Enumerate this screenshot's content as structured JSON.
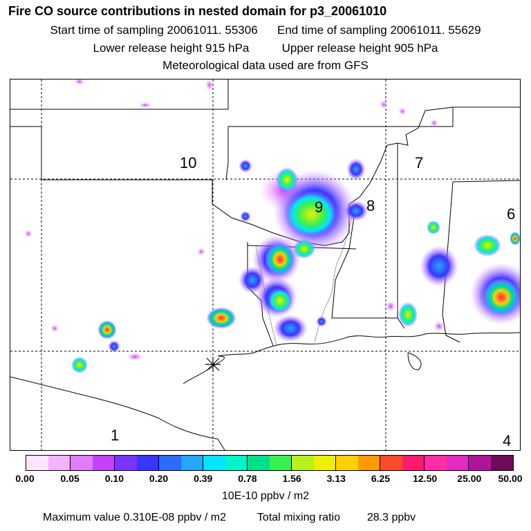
{
  "header": {
    "title": "Fire CO source contributions in nested domain for p3_20061010",
    "start_label": "Start time of sampling 20061011. 55306",
    "end_label": "End time of sampling 20061011. 55629",
    "lower_label": "Lower release height  915 hPa",
    "upper_label": "Upper release height  905 hPa",
    "met_label": "Meteorological data used are from GFS"
  },
  "map": {
    "region_labels": [
      "10",
      "7",
      "9",
      "8",
      "6",
      "1",
      "4"
    ]
  },
  "colorbar": {
    "ticks": [
      "0.00",
      "0.05",
      "0.10",
      "0.20",
      "0.39",
      "0.78",
      "1.56",
      "3.13",
      "6.25",
      "12.50",
      "25.00",
      "50.00"
    ],
    "colors": [
      "#ffe6ff",
      "#f5b3ff",
      "#e27cff",
      "#c640ff",
      "#7a33ff",
      "#3a35ff",
      "#2c6bff",
      "#25a6ff",
      "#00e4ff",
      "#00f5c8",
      "#00e08a",
      "#39f051",
      "#b8ef1e",
      "#eef000",
      "#ffd000",
      "#ff9a00",
      "#ff4a2a",
      "#ff1a6e",
      "#ff2ea6",
      "#e62cc0",
      "#b0149a",
      "#6e0a5a"
    ],
    "units": "10E-10 ppbv / m2"
  },
  "footer": {
    "max_label": "Maximum value  0.310E-08 ppbv / m2",
    "total_label": "Total mixing ratio",
    "total_value": "28.3 ppbv"
  }
}
